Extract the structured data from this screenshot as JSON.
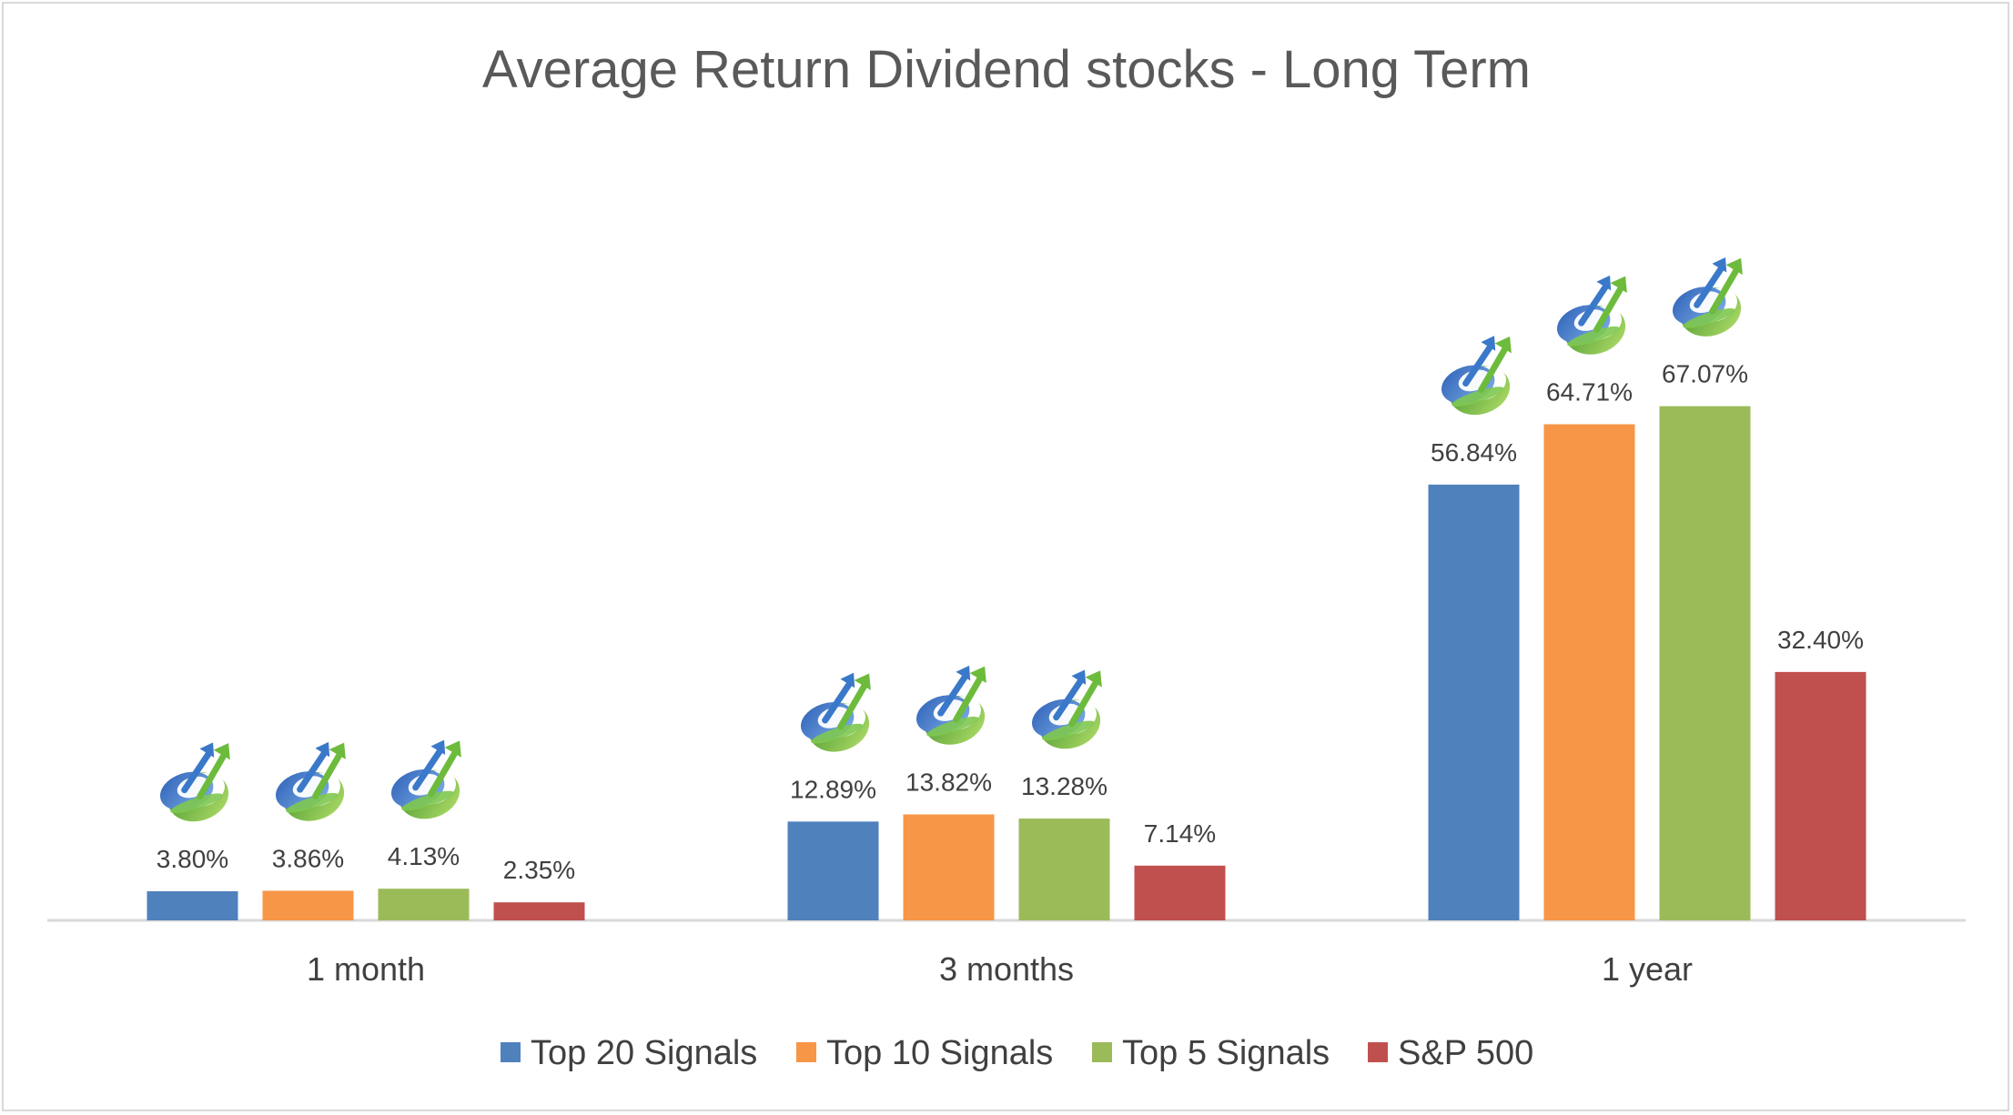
{
  "chart_data": {
    "type": "bar",
    "title": "Average Return Dividend stocks - Long Term",
    "categories": [
      "1 month",
      "3 months",
      "1 year"
    ],
    "series": [
      {
        "name": "Top 20 Signals",
        "color": "#4f81bd",
        "values": [
          3.8,
          12.89,
          56.84
        ],
        "labels": [
          "3.80%",
          "12.89%",
          "56.84%"
        ],
        "logo": [
          true,
          true,
          true
        ]
      },
      {
        "name": "Top 10 Signals",
        "color": "#f79646",
        "values": [
          3.86,
          13.82,
          64.71
        ],
        "labels": [
          "3.86%",
          "13.82%",
          "64.71%"
        ],
        "logo": [
          true,
          true,
          true
        ]
      },
      {
        "name": "Top 5 Signals",
        "color": "#9bbb59",
        "values": [
          4.13,
          13.28,
          67.07
        ],
        "labels": [
          "4.13%",
          "13.28%",
          "67.07%"
        ],
        "logo": [
          true,
          true,
          true
        ]
      },
      {
        "name": "S&P 500",
        "color": "#c0504d",
        "values": [
          2.35,
          7.14,
          32.4
        ],
        "labels": [
          "2.35%",
          "7.14%",
          "32.40%"
        ],
        "logo": [
          false,
          false,
          false
        ]
      }
    ],
    "ylim": [
      0,
      100
    ],
    "grid": false,
    "legend": "bottom",
    "logo_icon": "rising-arrow-globe-icon"
  }
}
